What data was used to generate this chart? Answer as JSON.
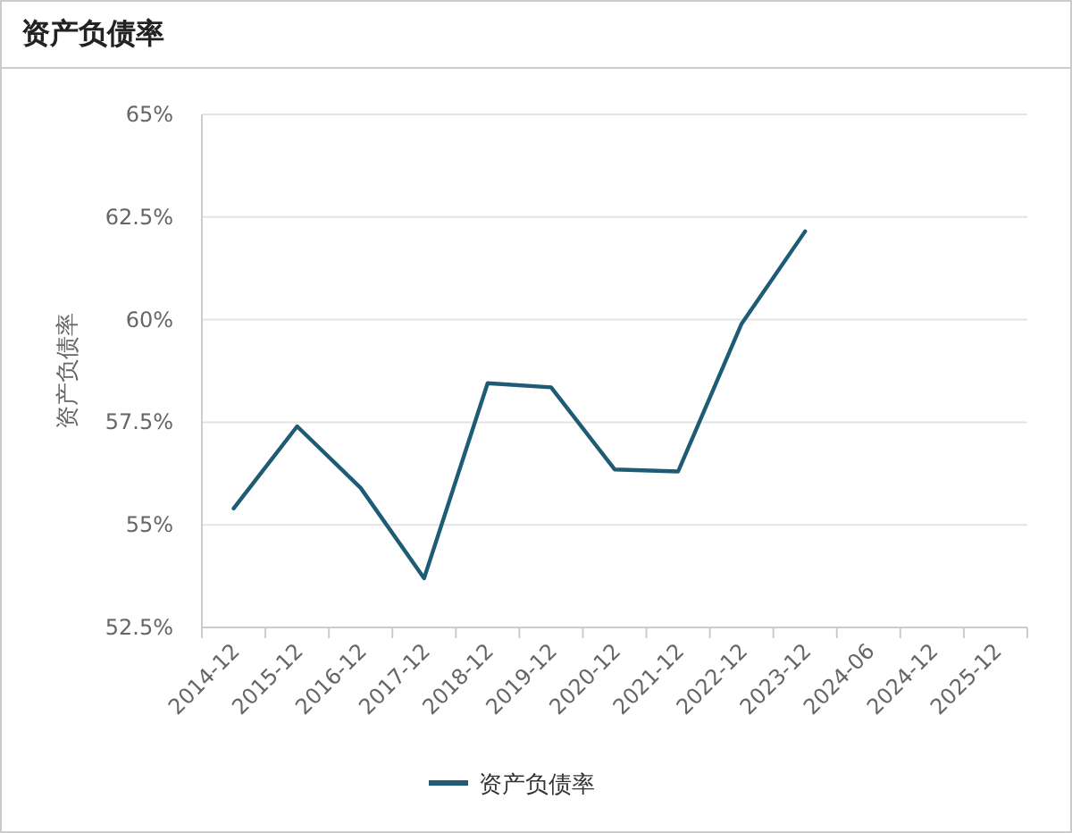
{
  "chart_data": {
    "type": "line",
    "title": "资产负债率",
    "ylabel": "资产负债率",
    "categories": [
      "2014-12",
      "2015-12",
      "2016-12",
      "2017-12",
      "2018-12",
      "2019-12",
      "2020-12",
      "2021-12",
      "2022-12",
      "2023-12",
      "2024-06",
      "2024-12",
      "2025-12"
    ],
    "series": [
      {
        "name": "资产负债率",
        "color": "#1d5c74",
        "values": [
          55.4,
          57.4,
          55.9,
          53.7,
          58.45,
          58.35,
          56.35,
          56.3,
          59.9,
          62.15,
          null,
          null,
          null
        ]
      }
    ],
    "ylim": [
      52.5,
      65
    ],
    "yticks": [
      {
        "value": 52.5,
        "label": "52.5%"
      },
      {
        "value": 55,
        "label": "55%"
      },
      {
        "value": 57.5,
        "label": "57.5%"
      },
      {
        "value": 60,
        "label": "60%"
      },
      {
        "value": 62.5,
        "label": "62.5%"
      },
      {
        "value": 65,
        "label": "65%"
      }
    ],
    "grid": "y",
    "legend": "bottom",
    "marker": "none",
    "line_style": "solid"
  }
}
